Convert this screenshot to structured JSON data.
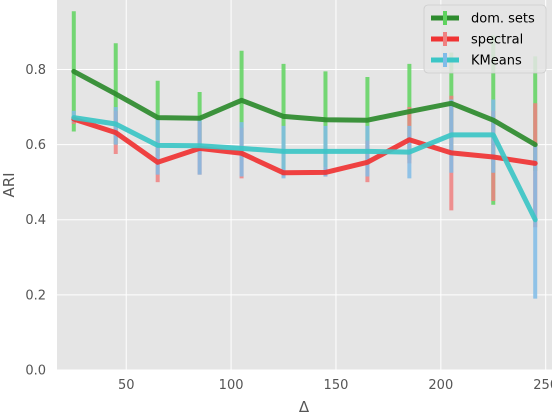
{
  "chart_data": {
    "type": "line",
    "xlabel": "Δ",
    "ylabel": "ARI",
    "xlim": [
      17,
      253
    ],
    "ylim": [
      0.0,
      0.985
    ],
    "xticks": [
      50,
      100,
      150,
      200,
      250
    ],
    "yticks": [
      0.0,
      0.2,
      0.4,
      0.6,
      0.8
    ],
    "xtick_labels": [
      "50",
      "100",
      "150",
      "200",
      "250"
    ],
    "ytick_labels": [
      "0.0",
      "0.2",
      "0.4",
      "0.6",
      "0.8"
    ],
    "grid": true,
    "legend_position": "top-right",
    "x": [
      25,
      45,
      65,
      85,
      105,
      125,
      145,
      165,
      185,
      205,
      225,
      245
    ],
    "series": [
      {
        "name": "dom. sets",
        "line_color": "#2e8b2e",
        "err_color": "#5fd35f",
        "values": [
          0.795,
          0.735,
          0.672,
          0.67,
          0.718,
          0.675,
          0.666,
          0.665,
          0.688,
          0.71,
          0.665,
          0.6
        ],
        "err_low": [
          0.635,
          0.6,
          0.57,
          0.6,
          0.59,
          0.535,
          0.54,
          0.55,
          0.56,
          0.575,
          0.44,
          0.53
        ],
        "err_high": [
          0.955,
          0.87,
          0.77,
          0.74,
          0.85,
          0.815,
          0.795,
          0.78,
          0.815,
          0.845,
          0.89,
          0.835
        ]
      },
      {
        "name": "spectral",
        "line_color": "#f03333",
        "err_color": "#f08080",
        "values": [
          0.668,
          0.632,
          0.553,
          0.59,
          0.577,
          0.525,
          0.526,
          0.553,
          0.613,
          0.578,
          0.567,
          0.55
        ],
        "err_low": [
          0.655,
          0.575,
          0.5,
          0.52,
          0.51,
          0.515,
          0.515,
          0.5,
          0.55,
          0.425,
          0.45,
          0.38
        ],
        "err_high": [
          0.675,
          0.69,
          0.61,
          0.66,
          0.645,
          0.535,
          0.54,
          0.61,
          0.7,
          0.73,
          0.69,
          0.71
        ]
      },
      {
        "name": "KMeans",
        "line_color": "#3cc6c6",
        "err_color": "#80bce8",
        "values": [
          0.672,
          0.655,
          0.598,
          0.597,
          0.59,
          0.582,
          0.582,
          0.582,
          0.58,
          0.626,
          0.626,
          0.4
        ],
        "err_low": [
          0.66,
          0.6,
          0.52,
          0.52,
          0.515,
          0.51,
          0.515,
          0.515,
          0.51,
          0.525,
          0.525,
          0.19
        ],
        "err_high": [
          0.69,
          0.7,
          0.67,
          0.67,
          0.66,
          0.65,
          0.65,
          0.65,
          0.65,
          0.72,
          0.72,
          0.6
        ]
      }
    ]
  }
}
